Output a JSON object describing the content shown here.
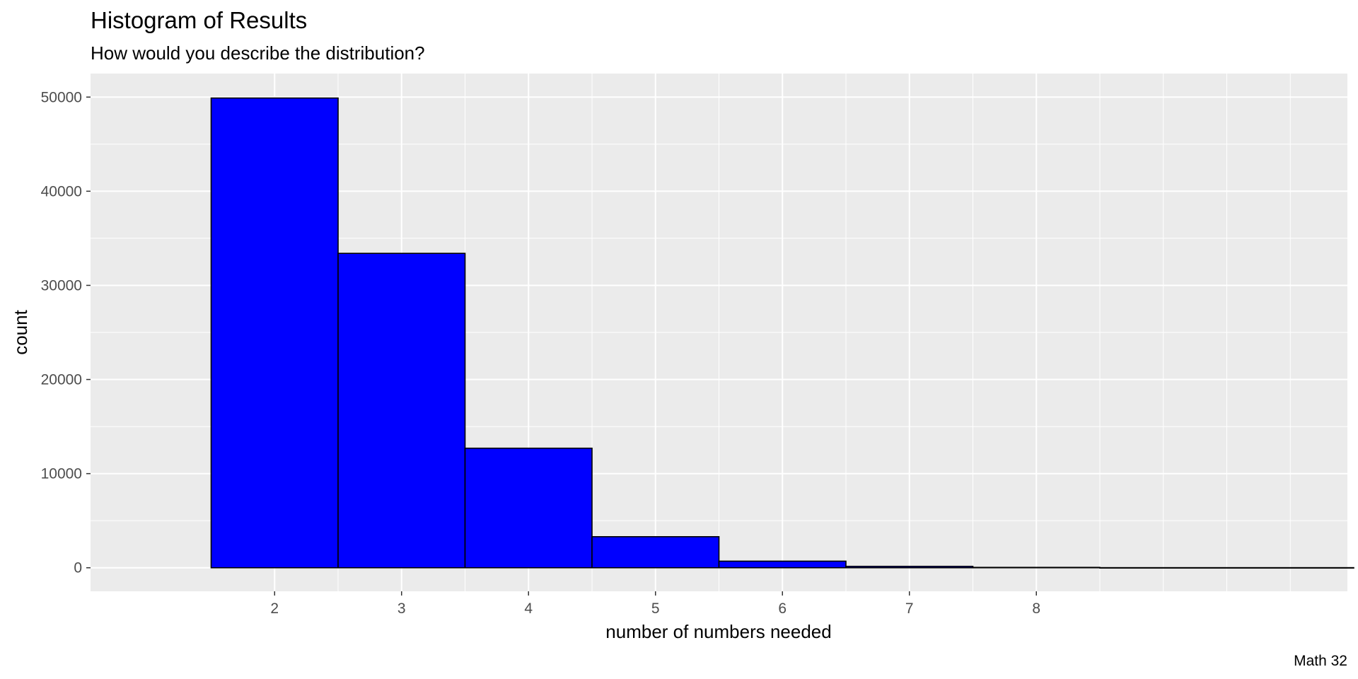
{
  "chart_data": {
    "type": "bar",
    "title": "Histogram of Results",
    "subtitle": "How would you describe the distribution?",
    "xlabel": "number of numbers needed",
    "ylabel": "count",
    "caption": "Math 32",
    "bins": [
      {
        "from": 1.5,
        "to": 2.5,
        "count": 49900
      },
      {
        "from": 2.5,
        "to": 3.5,
        "count": 33400
      },
      {
        "from": 3.5,
        "to": 4.5,
        "count": 12700
      },
      {
        "from": 4.5,
        "to": 5.5,
        "count": 3300
      },
      {
        "from": 5.5,
        "to": 6.5,
        "count": 700
      },
      {
        "from": 6.5,
        "to": 7.5,
        "count": 150
      },
      {
        "from": 7.5,
        "to": 8.5,
        "count": 40
      },
      {
        "from": 8.5,
        "to": 10.5,
        "count": 10
      }
    ],
    "x_ticks": [
      "2",
      "3",
      "4",
      "5",
      "6",
      "7",
      "8"
    ],
    "y_ticks": [
      "0",
      "10000",
      "20000",
      "30000",
      "40000",
      "50000"
    ],
    "xlim": [
      0.55,
      10.45
    ],
    "ylim": [
      -2500,
      52500
    ],
    "grid": true,
    "bar_fill": "#0000ff",
    "bar_outline": "#000000",
    "panel_background": "#ebebeb",
    "grid_color": "#ffffff"
  }
}
